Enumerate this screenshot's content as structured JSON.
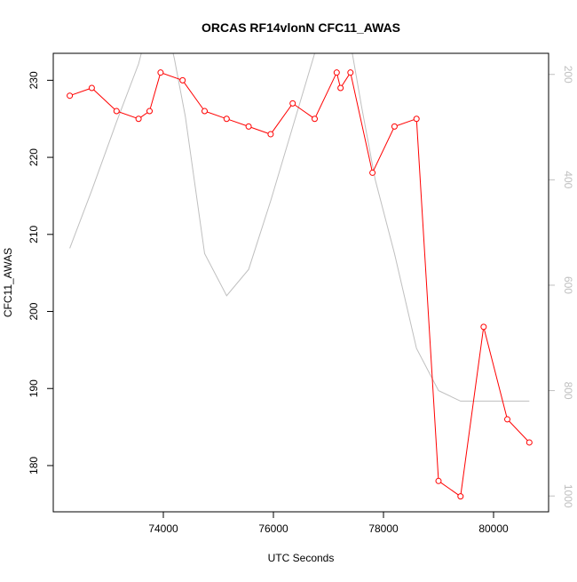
{
  "chart_data": {
    "type": "line",
    "title": "ORCAS RF14vlonN CFC11_AWAS",
    "xlabel": "UTC Seconds",
    "ylabel": "CFC11_AWAS",
    "xlim": [
      72000,
      81000
    ],
    "ylim": [
      174,
      233.5
    ],
    "x_ticks": [
      74000,
      76000,
      78000,
      80000
    ],
    "y_ticks": [
      180,
      190,
      200,
      210,
      220,
      230
    ],
    "secondary_axis": {
      "position": "right",
      "reversed": true,
      "ylim": [
        1030,
        160
      ],
      "ticks": [
        200,
        400,
        600,
        800,
        1000
      ],
      "color": "#bfbfbf"
    },
    "series": [
      {
        "color": "#ff0000",
        "marker": "open-circle",
        "axis": "left",
        "x": [
          72300,
          72700,
          73150,
          73550,
          73750,
          73950,
          74350,
          74750,
          75150,
          75550,
          75950,
          76350,
          76750,
          77150,
          77220,
          77400,
          77800,
          78200,
          78600,
          79000,
          79400,
          79820,
          80250,
          80650
        ],
        "y": [
          228,
          229,
          226,
          225,
          226,
          231,
          230,
          226,
          225,
          224,
          223,
          227,
          225,
          231,
          229,
          231,
          218,
          224,
          225,
          178,
          176,
          198,
          186,
          183
        ]
      },
      {
        "color": "#bfbfbf",
        "marker": "none",
        "axis": "right",
        "x": [
          72300,
          72700,
          73150,
          73550,
          73800,
          74000,
          74200,
          74400,
          74750,
          75150,
          75550,
          75950,
          76350,
          76750,
          77000,
          77200,
          77400,
          77600,
          77850,
          78200,
          78600,
          79000,
          79400,
          79800,
          80250,
          80650
        ],
        "y": [
          530,
          420,
          290,
          180,
          80,
          80,
          170,
          280,
          540,
          620,
          570,
          440,
          300,
          160,
          40,
          40,
          140,
          260,
          400,
          540,
          720,
          800,
          820,
          820,
          820,
          820
        ]
      }
    ]
  }
}
